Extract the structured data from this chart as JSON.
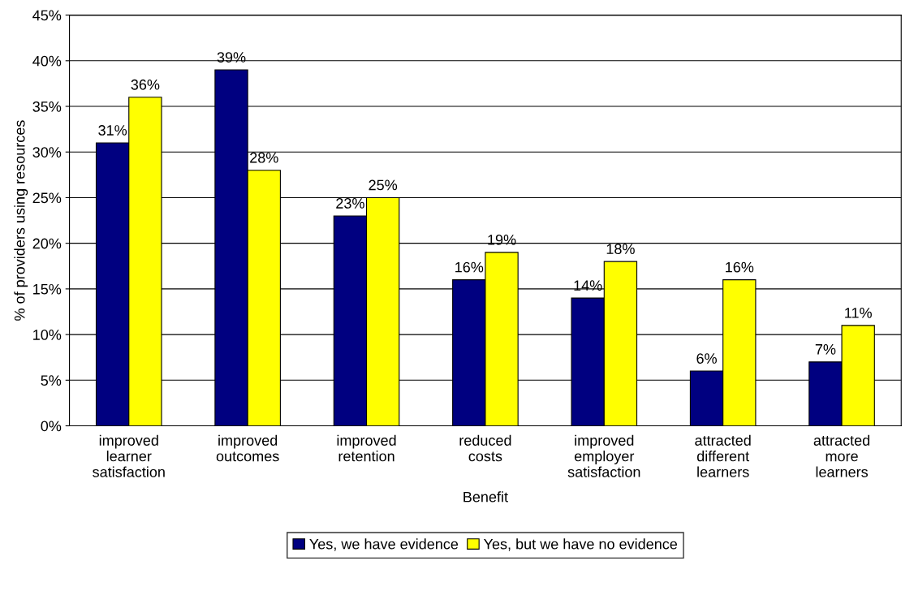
{
  "chart_data": {
    "type": "bar",
    "categories": [
      "improved\nlearner\nsatisfaction",
      "improved\noutcomes",
      "improved\nretention",
      "reduced\ncosts",
      "improved\nemployer\nsatisfaction",
      "attracted\ndifferent\nlearners",
      "attracted\nmore\nlearners"
    ],
    "series": [
      {
        "name": "Yes, we have evidence",
        "color": "#000080",
        "values": [
          31,
          39,
          23,
          16,
          14,
          6,
          7
        ],
        "value_labels": [
          "31%",
          "39%",
          "23%",
          "16%",
          "14%",
          "6%",
          "7%"
        ]
      },
      {
        "name": "Yes, but we have no evidence",
        "color": "#ffff00",
        "values": [
          36,
          28,
          25,
          19,
          18,
          16,
          11
        ],
        "value_labels": [
          "36%",
          "28%",
          "25%",
          "19%",
          "18%",
          "16%",
          "11%"
        ]
      }
    ],
    "xlabel": "Benefit",
    "ylabel": "% of providers using resources",
    "ylim": [
      0,
      45
    ],
    "yticks": [
      {
        "value": 0,
        "label": "0%"
      },
      {
        "value": 5,
        "label": "5%"
      },
      {
        "value": 10,
        "label": "10%"
      },
      {
        "value": 15,
        "label": "15%"
      },
      {
        "value": 20,
        "label": "20%"
      },
      {
        "value": 25,
        "label": "25%"
      },
      {
        "value": 30,
        "label": "30%"
      },
      {
        "value": 35,
        "label": "35%"
      },
      {
        "value": 40,
        "label": "40%"
      },
      {
        "value": 45,
        "label": "45%"
      }
    ],
    "grid": "y",
    "legend": "bottom"
  }
}
